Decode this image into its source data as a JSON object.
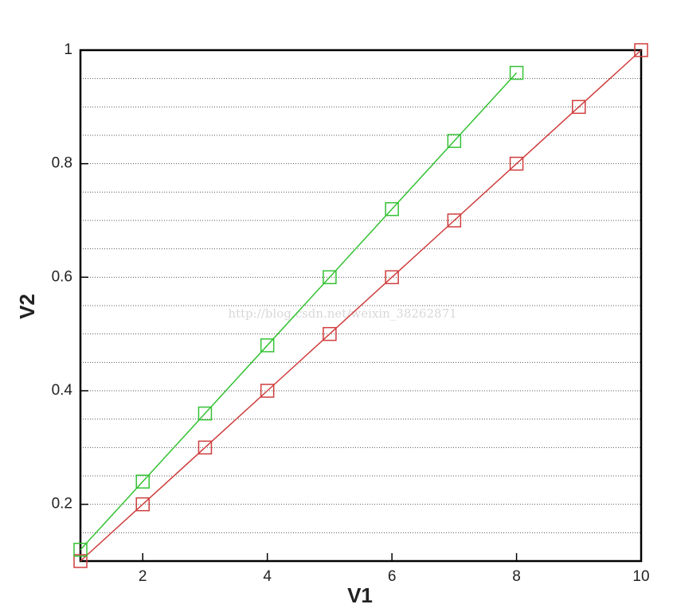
{
  "chart_data": {
    "type": "line",
    "x_label": "V1",
    "y_label": "V2",
    "watermark": "http://blog.csdn.net/weixin_38262871",
    "xlim": [
      1,
      10
    ],
    "ylim": [
      0.1,
      1
    ],
    "xticks": [
      2,
      4,
      6,
      8,
      10
    ],
    "yticks": [
      0.2,
      0.4,
      0.6,
      0.8,
      1
    ],
    "minor_yticks": [
      0.15,
      0.2,
      0.25,
      0.3,
      0.35,
      0.4,
      0.45,
      0.5,
      0.55,
      0.6,
      0.65,
      0.7,
      0.75,
      0.8,
      0.85,
      0.9,
      0.95
    ],
    "grid": true,
    "series": [
      {
        "color": "#d03c3c",
        "x": [
          1,
          2,
          3,
          4,
          5,
          6,
          7,
          8,
          9,
          10
        ],
        "values": [
          0.1,
          0.2,
          0.3,
          0.4,
          0.5,
          0.6,
          0.7,
          0.8,
          0.9,
          1.0
        ]
      },
      {
        "color": "#33c233",
        "x": [
          1,
          2,
          3,
          4,
          5,
          6,
          7,
          8
        ],
        "values": [
          0.12,
          0.24,
          0.36,
          0.48,
          0.6,
          0.72,
          0.84,
          0.96
        ]
      }
    ]
  }
}
